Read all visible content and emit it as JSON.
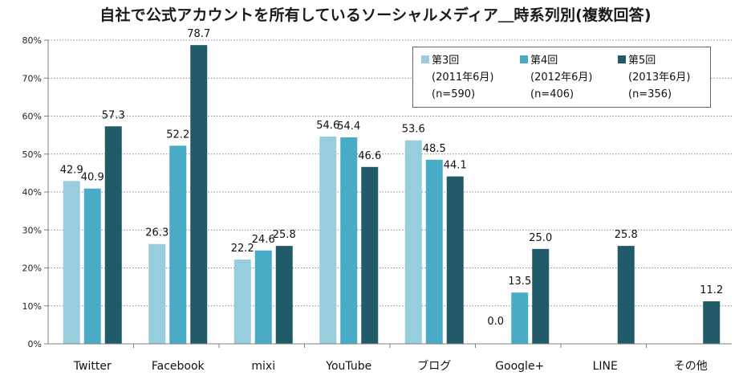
{
  "title": "自社で公式アカウントを所有しているソーシャルメディア＿時系列別(複数回答)",
  "colors": {
    "series1": "#97cddd",
    "series2": "#4aabc6",
    "series3": "#215a69",
    "grid": "#888888",
    "axis": "#7f7f7f"
  },
  "legend": [
    {
      "name": "第3回",
      "line1": "(2011年6月)",
      "line2": "(n=590)"
    },
    {
      "name": "第4回",
      "line1": "(2012年6月)",
      "line2": "(n=406)"
    },
    {
      "name": "第5回",
      "line1": "(2013年6月)",
      "line2": "(n=356)"
    }
  ],
  "chart_data": {
    "type": "bar",
    "title": "自社で公式アカウントを所有しているソーシャルメディア＿時系列別(複数回答)",
    "categories": [
      "Twitter",
      "Facebook",
      "mixi",
      "YouTube",
      "ブログ",
      "Google+",
      "LINE",
      "その他"
    ],
    "series": [
      {
        "name": "第3回",
        "values": [
          42.9,
          26.3,
          22.2,
          54.6,
          53.6,
          null,
          null,
          null
        ]
      },
      {
        "name": "第4回",
        "values": [
          40.9,
          52.2,
          24.6,
          54.4,
          48.5,
          13.5,
          null,
          null
        ]
      },
      {
        "name": "第5回",
        "values": [
          57.3,
          78.7,
          25.8,
          46.6,
          44.1,
          25.0,
          25.8,
          11.2
        ]
      }
    ],
    "extra_labels": [
      {
        "category": "Google+",
        "series": "第3回",
        "text": "0.0"
      }
    ],
    "yticks": [
      "0%",
      "10%",
      "20%",
      "30%",
      "40%",
      "50%",
      "60%",
      "70%",
      "80%"
    ],
    "ylim": [
      0,
      80
    ],
    "grid": true,
    "legend_position": "top-right"
  }
}
